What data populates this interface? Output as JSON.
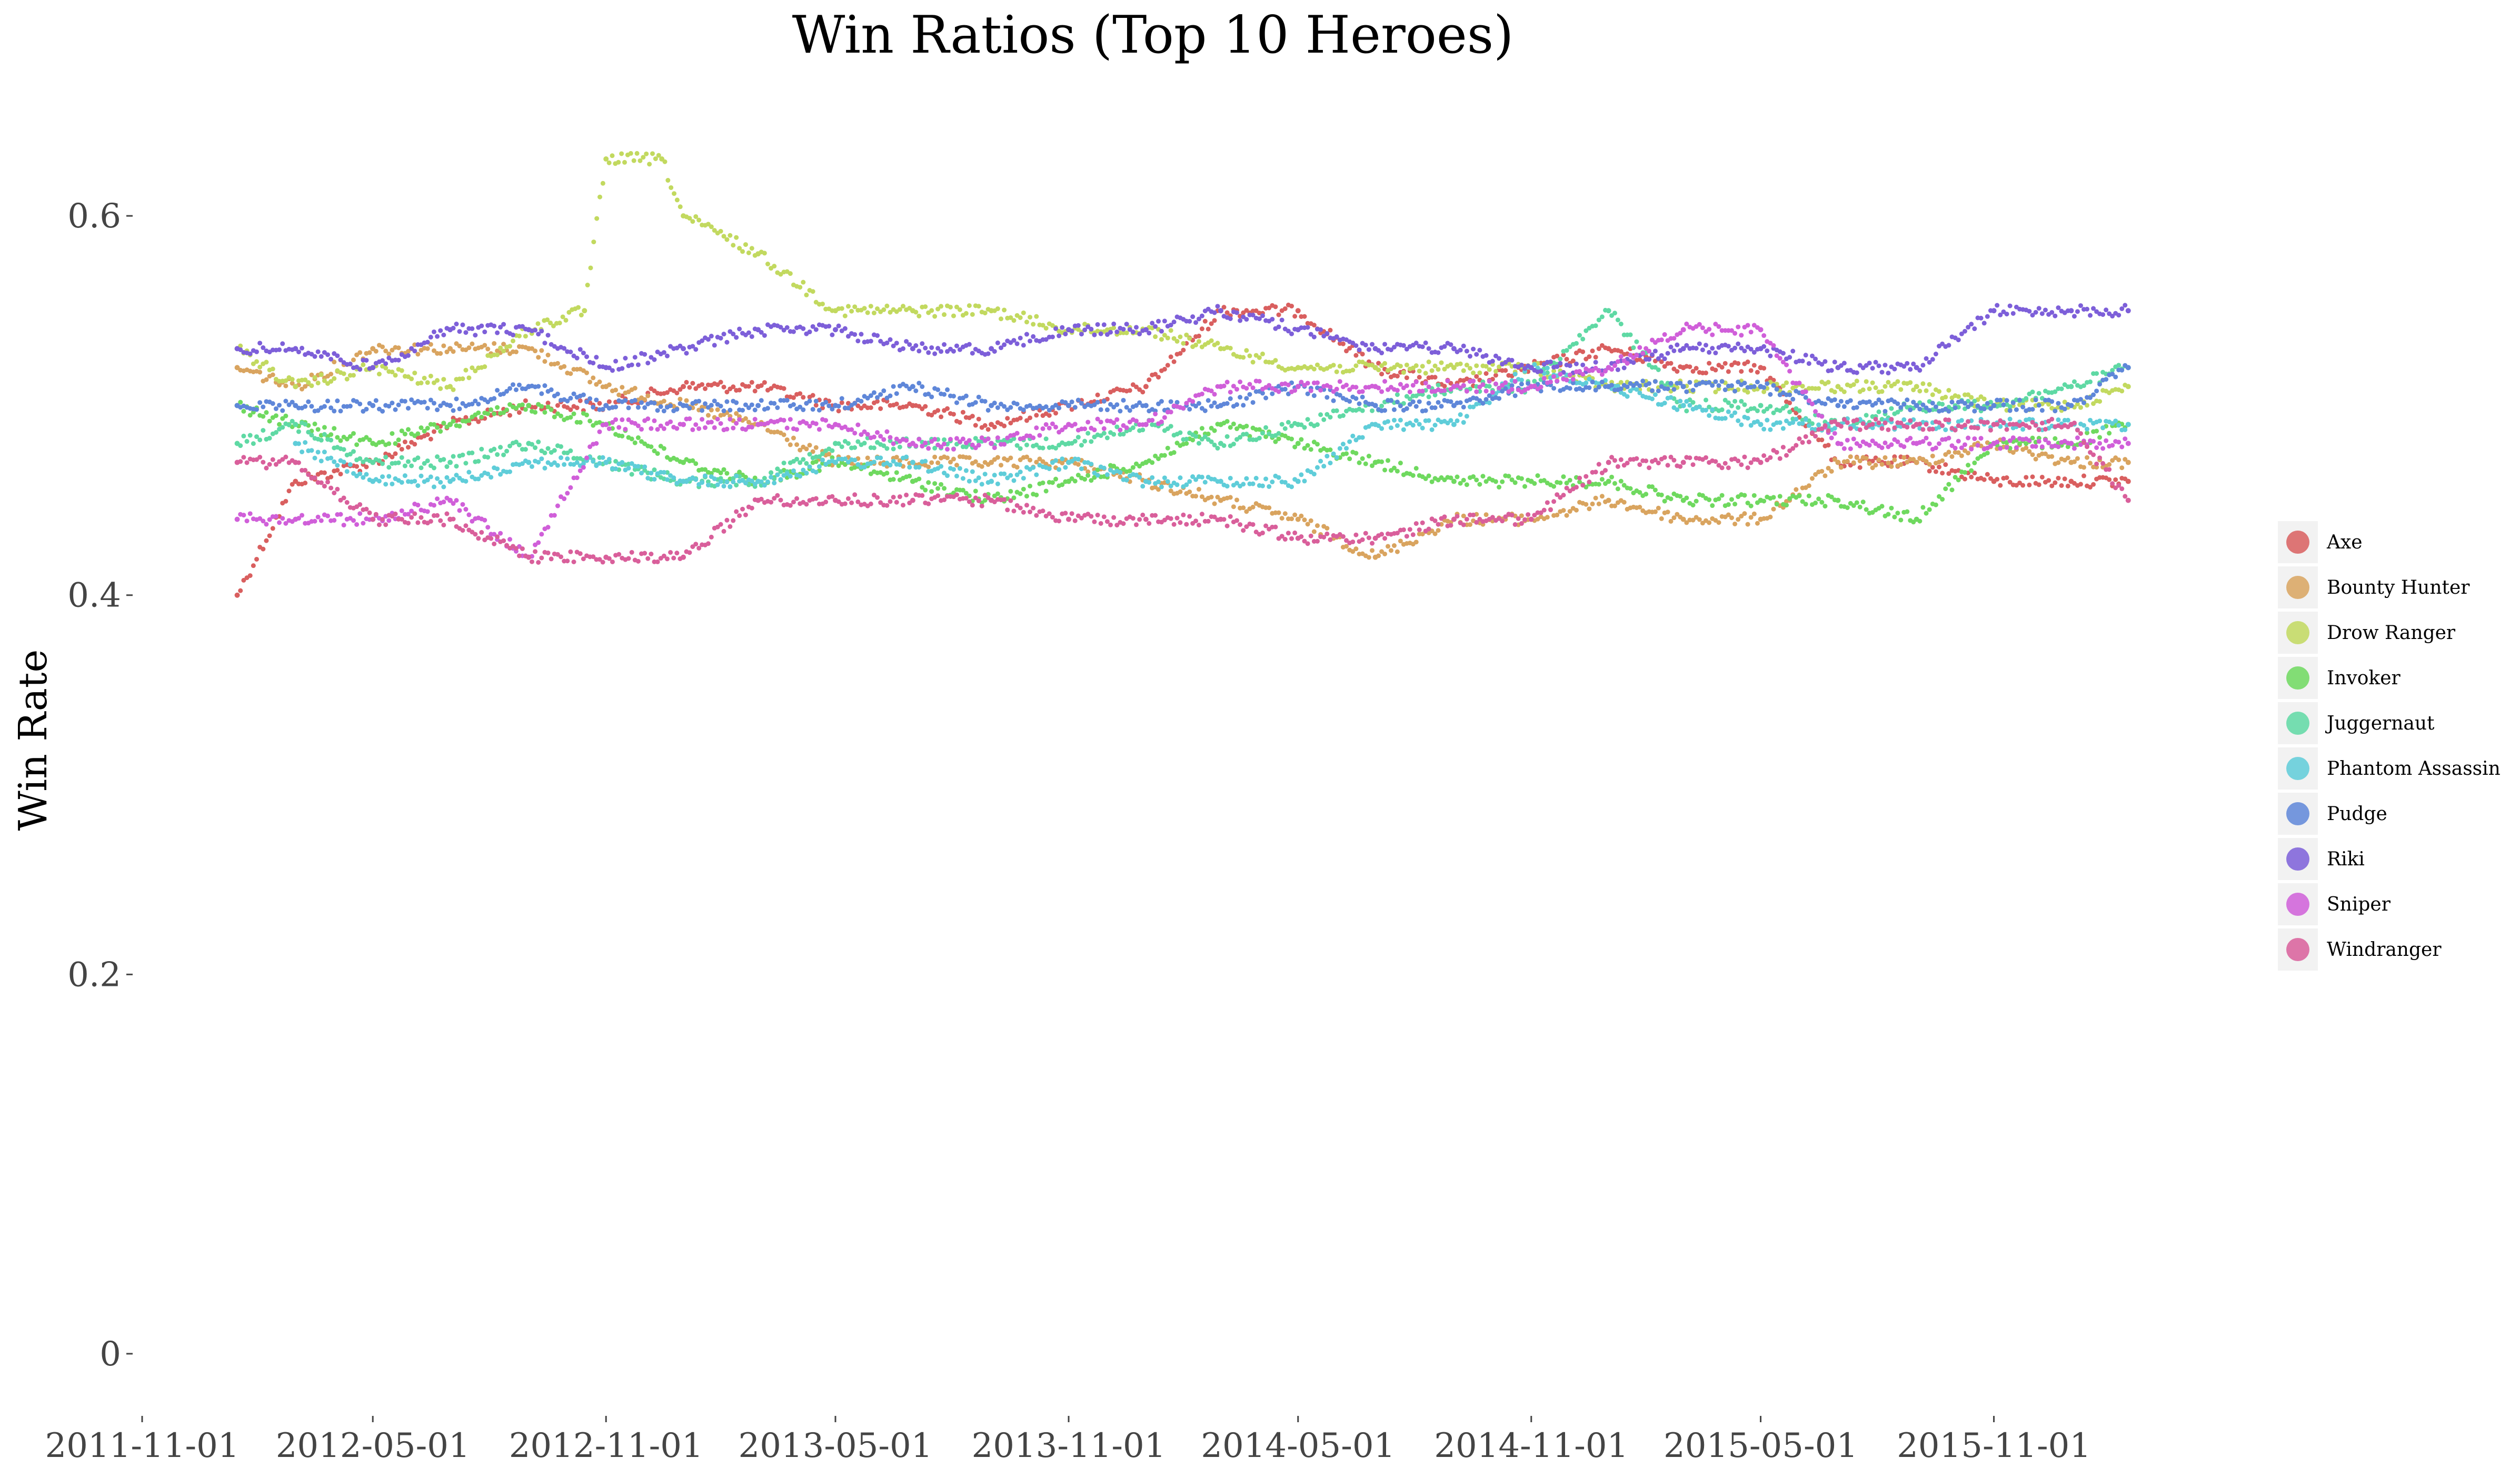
{
  "chart_data": {
    "type": "scatter",
    "title": "Win Ratios (Top 10 Heroes)",
    "xlabel": "",
    "ylabel": "Win Rate",
    "x_ticks": [
      "2011-11-01",
      "2012-05-01",
      "2012-11-01",
      "2013-05-01",
      "2013-11-01",
      "2014-05-01",
      "2014-11-01",
      "2015-05-01",
      "2015-11-01"
    ],
    "y_ticks": [
      "0",
      "0.2",
      "0.4",
      "0.6"
    ],
    "xlim": [
      "2011-11-01",
      "2016-02-18"
    ],
    "ylim": [
      -0.03,
      0.65
    ],
    "grid": false,
    "legend_position": "right",
    "series": [
      {
        "name": "Axe",
        "color": "#d95f5f",
        "points": [
          [
            "2012-01-15",
            0.4
          ],
          [
            "2012-03-01",
            0.46
          ],
          [
            "2012-05-01",
            0.47
          ],
          [
            "2012-07-01",
            0.49
          ],
          [
            "2012-09-01",
            0.5
          ],
          [
            "2012-11-01",
            0.5
          ],
          [
            "2013-01-01",
            0.51
          ],
          [
            "2013-03-01",
            0.51
          ],
          [
            "2013-05-01",
            0.5
          ],
          [
            "2013-07-01",
            0.5
          ],
          [
            "2013-09-01",
            0.49
          ],
          [
            "2013-11-01",
            0.5
          ],
          [
            "2014-01-01",
            0.51
          ],
          [
            "2014-03-01",
            0.55
          ],
          [
            "2014-05-01",
            0.55
          ],
          [
            "2014-07-01",
            0.52
          ],
          [
            "2014-09-01",
            0.51
          ],
          [
            "2014-11-01",
            0.52
          ],
          [
            "2015-01-01",
            0.53
          ],
          [
            "2015-03-01",
            0.52
          ],
          [
            "2015-05-01",
            0.52
          ],
          [
            "2015-07-01",
            0.47
          ],
          [
            "2015-09-01",
            0.47
          ],
          [
            "2015-11-01",
            0.46
          ],
          [
            "2016-01-01",
            0.46
          ],
          [
            "2016-02-15",
            0.46
          ]
        ]
      },
      {
        "name": "Bounty Hunter",
        "color": "#d9a45f",
        "points": [
          [
            "2012-01-15",
            0.52
          ],
          [
            "2012-03-01",
            0.51
          ],
          [
            "2012-05-01",
            0.53
          ],
          [
            "2012-07-01",
            0.53
          ],
          [
            "2012-09-01",
            0.53
          ],
          [
            "2012-11-01",
            0.51
          ],
          [
            "2013-01-01",
            0.5
          ],
          [
            "2013-03-01",
            0.49
          ],
          [
            "2013-05-01",
            0.47
          ],
          [
            "2013-07-01",
            0.47
          ],
          [
            "2013-09-01",
            0.47
          ],
          [
            "2013-11-01",
            0.47
          ],
          [
            "2014-01-01",
            0.46
          ],
          [
            "2014-03-01",
            0.45
          ],
          [
            "2014-05-01",
            0.44
          ],
          [
            "2014-07-01",
            0.42
          ],
          [
            "2014-09-01",
            0.44
          ],
          [
            "2014-11-01",
            0.44
          ],
          [
            "2015-01-01",
            0.45
          ],
          [
            "2015-03-01",
            0.44
          ],
          [
            "2015-05-01",
            0.44
          ],
          [
            "2015-07-01",
            0.47
          ],
          [
            "2015-09-01",
            0.47
          ],
          [
            "2015-11-01",
            0.48
          ],
          [
            "2016-01-01",
            0.47
          ],
          [
            "2016-02-15",
            0.47
          ]
        ]
      },
      {
        "name": "Drow Ranger",
        "color": "#c2d95f",
        "points": [
          [
            "2012-01-15",
            0.53
          ],
          [
            "2012-03-01",
            0.51
          ],
          [
            "2012-05-01",
            0.52
          ],
          [
            "2012-07-01",
            0.51
          ],
          [
            "2012-09-01",
            0.54
          ],
          [
            "2012-10-15",
            0.55
          ],
          [
            "2012-11-01",
            0.63
          ],
          [
            "2012-12-15",
            0.63
          ],
          [
            "2013-01-01",
            0.6
          ],
          [
            "2013-03-01",
            0.58
          ],
          [
            "2013-05-01",
            0.55
          ],
          [
            "2013-07-01",
            0.55
          ],
          [
            "2013-09-01",
            0.55
          ],
          [
            "2013-11-01",
            0.54
          ],
          [
            "2014-01-01",
            0.54
          ],
          [
            "2014-03-01",
            0.53
          ],
          [
            "2014-05-01",
            0.52
          ],
          [
            "2014-07-01",
            0.52
          ],
          [
            "2014-09-01",
            0.52
          ],
          [
            "2014-11-01",
            0.52
          ],
          [
            "2015-01-01",
            0.51
          ],
          [
            "2015-03-01",
            0.51
          ],
          [
            "2015-05-01",
            0.51
          ],
          [
            "2015-07-01",
            0.51
          ],
          [
            "2015-09-01",
            0.51
          ],
          [
            "2015-11-01",
            0.5
          ],
          [
            "2016-01-01",
            0.5
          ],
          [
            "2016-02-15",
            0.51
          ]
        ]
      },
      {
        "name": "Invoker",
        "color": "#6fd95f",
        "points": [
          [
            "2012-01-15",
            0.5
          ],
          [
            "2012-03-01",
            0.49
          ],
          [
            "2012-05-01",
            0.48
          ],
          [
            "2012-07-01",
            0.49
          ],
          [
            "2012-09-01",
            0.5
          ],
          [
            "2012-11-01",
            0.49
          ],
          [
            "2013-01-01",
            0.47
          ],
          [
            "2013-03-01",
            0.46
          ],
          [
            "2013-05-01",
            0.47
          ],
          [
            "2013-07-01",
            0.46
          ],
          [
            "2013-09-01",
            0.45
          ],
          [
            "2013-11-01",
            0.46
          ],
          [
            "2014-01-01",
            0.47
          ],
          [
            "2014-03-01",
            0.49
          ],
          [
            "2014-05-01",
            0.48
          ],
          [
            "2014-07-01",
            0.47
          ],
          [
            "2014-09-01",
            0.46
          ],
          [
            "2014-11-01",
            0.46
          ],
          [
            "2015-01-01",
            0.46
          ],
          [
            "2015-03-01",
            0.45
          ],
          [
            "2015-05-01",
            0.45
          ],
          [
            "2015-07-01",
            0.45
          ],
          [
            "2015-09-01",
            0.44
          ],
          [
            "2015-11-01",
            0.48
          ],
          [
            "2016-01-01",
            0.48
          ],
          [
            "2016-02-15",
            0.49
          ]
        ]
      },
      {
        "name": "Juggernaut",
        "color": "#5fd9a4",
        "points": [
          [
            "2012-01-15",
            0.48
          ],
          [
            "2012-03-01",
            0.49
          ],
          [
            "2012-05-01",
            0.47
          ],
          [
            "2012-07-01",
            0.47
          ],
          [
            "2012-09-01",
            0.48
          ],
          [
            "2012-11-01",
            0.47
          ],
          [
            "2013-01-01",
            0.46
          ],
          [
            "2013-03-01",
            0.46
          ],
          [
            "2013-05-01",
            0.48
          ],
          [
            "2013-07-01",
            0.48
          ],
          [
            "2013-09-01",
            0.48
          ],
          [
            "2013-11-01",
            0.48
          ],
          [
            "2014-01-01",
            0.49
          ],
          [
            "2014-03-01",
            0.48
          ],
          [
            "2014-05-01",
            0.49
          ],
          [
            "2014-07-01",
            0.5
          ],
          [
            "2014-09-01",
            0.51
          ],
          [
            "2014-11-01",
            0.51
          ],
          [
            "2015-01-01",
            0.55
          ],
          [
            "2015-03-01",
            0.5
          ],
          [
            "2015-05-01",
            0.5
          ],
          [
            "2015-07-01",
            0.49
          ],
          [
            "2015-09-01",
            0.5
          ],
          [
            "2015-11-01",
            0.5
          ],
          [
            "2016-01-01",
            0.51
          ],
          [
            "2016-02-15",
            0.52
          ]
        ]
      },
      {
        "name": "Phantom Assassin",
        "color": "#5fcdd9",
        "points": [
          [
            "2012-03-01",
            0.48
          ],
          [
            "2012-05-01",
            0.46
          ],
          [
            "2012-07-01",
            0.46
          ],
          [
            "2012-09-01",
            0.47
          ],
          [
            "2012-11-01",
            0.47
          ],
          [
            "2013-01-01",
            0.46
          ],
          [
            "2013-03-01",
            0.46
          ],
          [
            "2013-05-01",
            0.47
          ],
          [
            "2013-07-01",
            0.47
          ],
          [
            "2013-09-01",
            0.46
          ],
          [
            "2013-11-01",
            0.47
          ],
          [
            "2014-01-01",
            0.46
          ],
          [
            "2014-03-01",
            0.46
          ],
          [
            "2014-05-01",
            0.46
          ],
          [
            "2014-07-01",
            0.49
          ],
          [
            "2014-09-01",
            0.49
          ],
          [
            "2014-11-01",
            0.52
          ],
          [
            "2015-01-01",
            0.51
          ],
          [
            "2015-03-01",
            0.5
          ],
          [
            "2015-05-01",
            0.49
          ],
          [
            "2015-07-01",
            0.49
          ],
          [
            "2015-09-01",
            0.49
          ],
          [
            "2015-11-01",
            0.49
          ],
          [
            "2016-01-01",
            0.49
          ],
          [
            "2016-02-15",
            0.49
          ]
        ]
      },
      {
        "name": "Pudge",
        "color": "#5f87d9",
        "points": [
          [
            "2012-01-15",
            0.5
          ],
          [
            "2012-03-01",
            0.5
          ],
          [
            "2012-05-01",
            0.5
          ],
          [
            "2012-07-01",
            0.5
          ],
          [
            "2012-09-01",
            0.51
          ],
          [
            "2012-11-01",
            0.5
          ],
          [
            "2013-01-01",
            0.5
          ],
          [
            "2013-03-01",
            0.5
          ],
          [
            "2013-05-01",
            0.5
          ],
          [
            "2013-07-01",
            0.51
          ],
          [
            "2013-09-01",
            0.5
          ],
          [
            "2013-11-01",
            0.5
          ],
          [
            "2014-01-01",
            0.5
          ],
          [
            "2014-03-01",
            0.5
          ],
          [
            "2014-05-01",
            0.51
          ],
          [
            "2014-07-01",
            0.5
          ],
          [
            "2014-09-01",
            0.5
          ],
          [
            "2014-11-01",
            0.51
          ],
          [
            "2015-01-01",
            0.51
          ],
          [
            "2015-03-01",
            0.51
          ],
          [
            "2015-05-01",
            0.51
          ],
          [
            "2015-07-01",
            0.5
          ],
          [
            "2015-09-01",
            0.5
          ],
          [
            "2015-11-01",
            0.5
          ],
          [
            "2016-01-01",
            0.5
          ],
          [
            "2016-02-15",
            0.52
          ]
        ]
      },
      {
        "name": "Riki",
        "color": "#7d5fd9",
        "points": [
          [
            "2012-01-15",
            0.53
          ],
          [
            "2012-03-01",
            0.53
          ],
          [
            "2012-05-01",
            0.52
          ],
          [
            "2012-07-01",
            0.54
          ],
          [
            "2012-09-01",
            0.54
          ],
          [
            "2012-11-01",
            0.52
          ],
          [
            "2013-01-01",
            0.53
          ],
          [
            "2013-03-01",
            0.54
          ],
          [
            "2013-05-01",
            0.54
          ],
          [
            "2013-07-01",
            0.53
          ],
          [
            "2013-09-01",
            0.53
          ],
          [
            "2013-11-01",
            0.54
          ],
          [
            "2014-01-01",
            0.54
          ],
          [
            "2014-03-01",
            0.55
          ],
          [
            "2014-05-01",
            0.54
          ],
          [
            "2014-07-01",
            0.53
          ],
          [
            "2014-09-01",
            0.53
          ],
          [
            "2014-11-01",
            0.52
          ],
          [
            "2015-01-01",
            0.52
          ],
          [
            "2015-03-01",
            0.53
          ],
          [
            "2015-05-01",
            0.53
          ],
          [
            "2015-07-01",
            0.52
          ],
          [
            "2015-09-01",
            0.52
          ],
          [
            "2015-11-01",
            0.55
          ],
          [
            "2016-01-01",
            0.55
          ],
          [
            "2016-02-15",
            0.55
          ]
        ]
      },
      {
        "name": "Sniper",
        "color": "#d05fd9",
        "points": [
          [
            "2012-01-15",
            0.44
          ],
          [
            "2012-03-01",
            0.44
          ],
          [
            "2012-05-01",
            0.44
          ],
          [
            "2012-07-01",
            0.45
          ],
          [
            "2012-09-01",
            0.42
          ],
          [
            "2012-11-01",
            0.49
          ],
          [
            "2013-01-01",
            0.49
          ],
          [
            "2013-03-01",
            0.49
          ],
          [
            "2013-05-01",
            0.49
          ],
          [
            "2013-07-01",
            0.48
          ],
          [
            "2013-09-01",
            0.48
          ],
          [
            "2013-11-01",
            0.49
          ],
          [
            "2014-01-01",
            0.49
          ],
          [
            "2014-03-01",
            0.51
          ],
          [
            "2014-05-01",
            0.51
          ],
          [
            "2014-07-01",
            0.51
          ],
          [
            "2014-09-01",
            0.51
          ],
          [
            "2014-11-01",
            0.51
          ],
          [
            "2015-01-01",
            0.52
          ],
          [
            "2015-03-01",
            0.54
          ],
          [
            "2015-05-01",
            0.54
          ],
          [
            "2015-07-01",
            0.48
          ],
          [
            "2015-09-01",
            0.48
          ],
          [
            "2015-11-01",
            0.48
          ],
          [
            "2016-01-01",
            0.48
          ],
          [
            "2016-02-15",
            0.48
          ]
        ]
      },
      {
        "name": "Windranger",
        "color": "#d95f9b",
        "points": [
          [
            "2012-01-15",
            0.47
          ],
          [
            "2012-03-01",
            0.47
          ],
          [
            "2012-05-01",
            0.44
          ],
          [
            "2012-07-01",
            0.44
          ],
          [
            "2012-09-01",
            0.42
          ],
          [
            "2012-11-01",
            0.42
          ],
          [
            "2013-01-01",
            0.42
          ],
          [
            "2013-03-01",
            0.45
          ],
          [
            "2013-05-01",
            0.45
          ],
          [
            "2013-07-01",
            0.45
          ],
          [
            "2013-09-01",
            0.45
          ],
          [
            "2013-11-01",
            0.44
          ],
          [
            "2014-01-01",
            0.44
          ],
          [
            "2014-03-01",
            0.44
          ],
          [
            "2014-05-01",
            0.43
          ],
          [
            "2014-07-01",
            0.43
          ],
          [
            "2014-09-01",
            0.44
          ],
          [
            "2014-11-01",
            0.44
          ],
          [
            "2015-01-01",
            0.47
          ],
          [
            "2015-03-01",
            0.47
          ],
          [
            "2015-05-01",
            0.47
          ],
          [
            "2015-07-01",
            0.49
          ],
          [
            "2015-09-01",
            0.49
          ],
          [
            "2015-11-01",
            0.49
          ],
          [
            "2016-01-01",
            0.49
          ],
          [
            "2016-02-15",
            0.45
          ]
        ]
      }
    ]
  }
}
